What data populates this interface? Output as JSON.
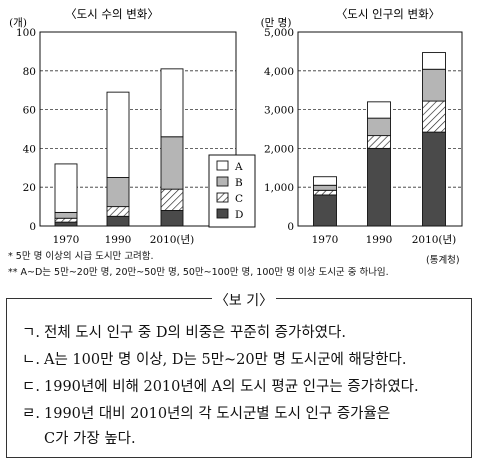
{
  "chart_data": [
    {
      "type": "bar",
      "stacked": true,
      "title": "〈도시 수의 변화〉",
      "unit": "(개)",
      "categories": [
        "1970",
        "1990",
        "2010(년)"
      ],
      "ylim": [
        0,
        100
      ],
      "yticks": [
        "0",
        "20",
        "40",
        "60",
        "80",
        "100"
      ],
      "grid": "dashed horizontal",
      "series": [
        {
          "name": "D",
          "values": [
            2,
            5,
            8
          ]
        },
        {
          "name": "C",
          "values": [
            2,
            5,
            11
          ]
        },
        {
          "name": "B",
          "values": [
            3,
            15,
            27
          ]
        },
        {
          "name": "A",
          "values": [
            25,
            44,
            35
          ]
        }
      ],
      "legend": {
        "position": "right",
        "entries": [
          "A",
          "B",
          "C",
          "D"
        ]
      }
    },
    {
      "type": "bar",
      "stacked": true,
      "title": "〈도시 인구의 변화〉",
      "unit": "(만 명)",
      "categories": [
        "1970",
        "1990",
        "2010(년)"
      ],
      "ylim": [
        0,
        5000
      ],
      "yticks": [
        "0",
        "1,000",
        "2,000",
        "3,000",
        "4,000",
        "5,000"
      ],
      "grid": "dashed horizontal",
      "series": [
        {
          "name": "D",
          "values": [
            800,
            2000,
            2420
          ]
        },
        {
          "name": "C",
          "values": [
            120,
            330,
            800
          ]
        },
        {
          "name": "B",
          "values": [
            130,
            450,
            820
          ]
        },
        {
          "name": "A",
          "values": [
            220,
            420,
            430
          ]
        }
      ]
    }
  ],
  "source": "(통계청)",
  "notes": [
    "* 5만 명 이상의 시급 도시만 고려함.",
    "** A~D는 5만~20만 명, 20만~50만 명, 50만~100만 명, 100만 명 이상 도시군 중 하나임."
  ],
  "box_title": "〈보 기〉",
  "items": [
    {
      "mark": "ㄱ.",
      "text": "전체 도시 인구 중 D의 비중은 꾸준히 증가하였다."
    },
    {
      "mark": "ㄴ.",
      "text": "A는 100만 명 이상, D는 5만~20만 명 도시군에 해당한다."
    },
    {
      "mark": "ㄷ.",
      "text": "1990년에 비해 2010년에 A의 도시 평균 인구는 증가하였다."
    },
    {
      "mark": "ㄹ.",
      "text": "1990년 대비 2010년의 각 도시군별 도시 인구 증가율은"
    },
    {
      "mark": "",
      "text": "C가 가장 높다."
    }
  ]
}
